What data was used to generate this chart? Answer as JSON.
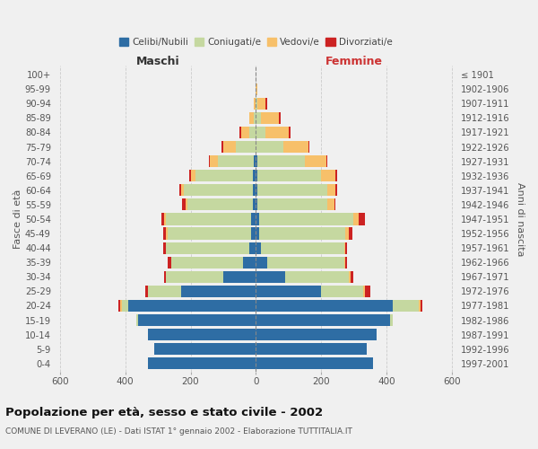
{
  "age_groups": [
    "0-4",
    "5-9",
    "10-14",
    "15-19",
    "20-24",
    "25-29",
    "30-34",
    "35-39",
    "40-44",
    "45-49",
    "50-54",
    "55-59",
    "60-64",
    "65-69",
    "70-74",
    "75-79",
    "80-84",
    "85-89",
    "90-94",
    "95-99",
    "100+"
  ],
  "birth_years": [
    "1997-2001",
    "1992-1996",
    "1987-1991",
    "1982-1986",
    "1977-1981",
    "1972-1976",
    "1967-1971",
    "1962-1966",
    "1957-1961",
    "1952-1956",
    "1947-1951",
    "1942-1946",
    "1937-1941",
    "1932-1936",
    "1927-1931",
    "1922-1926",
    "1917-1921",
    "1912-1916",
    "1907-1911",
    "1902-1906",
    "≤ 1901"
  ],
  "maschi": {
    "celibi": [
      330,
      310,
      330,
      360,
      390,
      230,
      100,
      40,
      20,
      15,
      15,
      10,
      10,
      10,
      5,
      0,
      0,
      0,
      0,
      0,
      0
    ],
    "coniugati": [
      0,
      0,
      0,
      5,
      20,
      100,
      175,
      220,
      255,
      255,
      260,
      200,
      210,
      175,
      110,
      60,
      20,
      5,
      0,
      0,
      0
    ],
    "vedovi": [
      0,
      0,
      0,
      0,
      5,
      0,
      0,
      0,
      0,
      5,
      5,
      5,
      10,
      15,
      25,
      40,
      25,
      15,
      5,
      0,
      0
    ],
    "divorziati": [
      0,
      0,
      0,
      0,
      5,
      10,
      5,
      10,
      10,
      10,
      10,
      10,
      5,
      5,
      5,
      5,
      5,
      0,
      0,
      0,
      0
    ]
  },
  "femmine": {
    "nubili": [
      360,
      340,
      370,
      410,
      420,
      200,
      90,
      35,
      15,
      10,
      10,
      5,
      5,
      5,
      5,
      0,
      0,
      0,
      0,
      0,
      0
    ],
    "coniugate": [
      0,
      0,
      0,
      10,
      80,
      130,
      195,
      235,
      255,
      265,
      290,
      215,
      215,
      195,
      145,
      85,
      30,
      15,
      5,
      0,
      0
    ],
    "vedove": [
      0,
      0,
      0,
      0,
      5,
      5,
      5,
      5,
      5,
      10,
      15,
      20,
      25,
      45,
      65,
      75,
      70,
      55,
      25,
      5,
      0
    ],
    "divorziate": [
      0,
      0,
      0,
      0,
      5,
      15,
      10,
      5,
      5,
      10,
      20,
      5,
      5,
      5,
      5,
      5,
      5,
      5,
      5,
      0,
      0
    ]
  },
  "colors": {
    "celibi": "#2e6da4",
    "coniugati": "#c5d8a0",
    "vedovi": "#f7c06a",
    "divorziati": "#cc2222"
  },
  "title": "Popolazione per età, sesso e stato civile - 2002",
  "subtitle": "COMUNE DI LEVERANO (LE) - Dati ISTAT 1° gennaio 2002 - Elaborazione TUTTITALIA.IT",
  "xlabel_maschi": "Maschi",
  "xlabel_femmine": "Femmine",
  "ylabel_left": "Fasce di età",
  "ylabel_right": "Anni di nascita",
  "xlim": 620,
  "legend_labels": [
    "Celibi/Nubili",
    "Coniugati/e",
    "Vedovi/e",
    "Divorziati/e"
  ],
  "background_color": "#f0f0f0"
}
